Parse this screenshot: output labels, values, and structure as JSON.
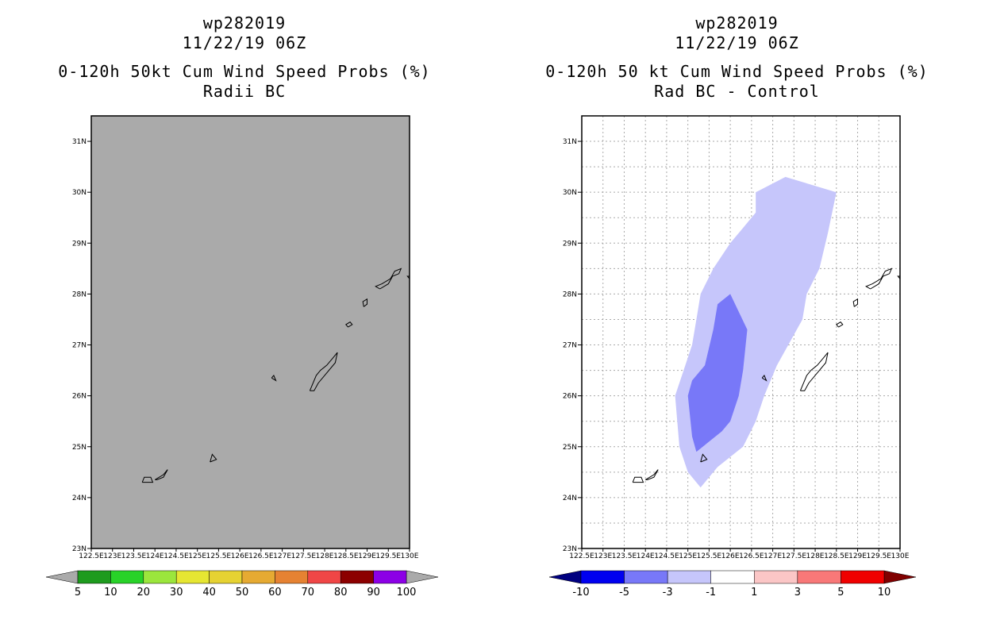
{
  "left_panel": {
    "title_line1": "wp282019",
    "title_line2": "11/22/19 06Z",
    "title_line3": "0-120h 50kt Cum Wind Speed Probs (%)",
    "title_line4": "Radii BC"
  },
  "right_panel": {
    "title_line1": "wp282019",
    "title_line2": "11/22/19 06Z",
    "title_line3": "0-120h 50 kt Cum Wind Speed Probs (%)",
    "title_line4": "Rad BC - Control"
  },
  "colors": {
    "left_field": "#aaaaaa",
    "light_blue": "#c6c6fb",
    "mid_blue": "#7878f8",
    "coast": "#000000"
  },
  "chart_data": [
    {
      "type": "heatmap",
      "title": "0-120h 50kt Cum Wind Speed Probs (%) - Radii BC",
      "x_ticks": [
        "122.5E",
        "123E",
        "123.5E",
        "124E",
        "124.5E",
        "125E",
        "125.5E",
        "126E",
        "126.5E",
        "127E",
        "127.5E",
        "128E",
        "128.5E",
        "129E",
        "129.5E",
        "130E"
      ],
      "y_ticks": [
        "23N",
        "24N",
        "25N",
        "26N",
        "27N",
        "28N",
        "29N",
        "30N",
        "31N"
      ],
      "xlim": [
        122.5,
        130
      ],
      "ylim": [
        23,
        31.5
      ],
      "field": "below 5% everywhere (uniform grey)",
      "colorbar": {
        "labels": [
          "5",
          "10",
          "20",
          "30",
          "40",
          "50",
          "60",
          "70",
          "80",
          "90",
          "100"
        ],
        "colors": [
          "#1e9b1e",
          "#28d228",
          "#9be63c",
          "#e6e632",
          "#e6d232",
          "#e6aa32",
          "#e68232",
          "#f04646",
          "#8c0000",
          "#8c00e6"
        ]
      }
    },
    {
      "type": "heatmap",
      "title": "0-120h 50 kt Cum Wind Speed Probs (%) - Rad BC - Control",
      "x_ticks": [
        "122.5E",
        "123E",
        "123.5E",
        "124E",
        "124.5E",
        "125E",
        "125.5E",
        "126E",
        "126.5E",
        "127E",
        "127.5E",
        "128E",
        "128.5E",
        "129E",
        "129.5E",
        "130E"
      ],
      "y_ticks": [
        "23N",
        "24N",
        "25N",
        "26N",
        "27N",
        "28N",
        "29N",
        "30N",
        "31N"
      ],
      "xlim": [
        122.5,
        130
      ],
      "ylim": [
        23,
        31.5
      ],
      "grid": true,
      "contours": [
        {
          "level": "-3 to -1",
          "polygon_lonlat": [
            [
              127.3,
              30.3
            ],
            [
              128.5,
              30.0
            ],
            [
              128.3,
              29.2
            ],
            [
              128.1,
              28.5
            ],
            [
              127.8,
              28.0
            ],
            [
              127.7,
              27.5
            ],
            [
              127.1,
              26.6
            ],
            [
              126.8,
              26.0
            ],
            [
              126.6,
              25.5
            ],
            [
              126.3,
              25.0
            ],
            [
              125.7,
              24.6
            ],
            [
              125.3,
              24.2
            ],
            [
              125.0,
              24.5
            ],
            [
              124.8,
              25.0
            ],
            [
              124.7,
              26.0
            ],
            [
              124.9,
              26.5
            ],
            [
              125.1,
              27.0
            ],
            [
              125.2,
              27.5
            ],
            [
              125.3,
              28.0
            ],
            [
              125.6,
              28.5
            ],
            [
              126.0,
              29.0
            ],
            [
              126.3,
              29.3
            ],
            [
              126.6,
              29.6
            ],
            [
              126.6,
              30.0
            ]
          ]
        },
        {
          "level": "-5 to -3",
          "polygon_lonlat": [
            [
              126.0,
              28.0
            ],
            [
              126.4,
              27.3
            ],
            [
              126.3,
              26.5
            ],
            [
              126.2,
              26.0
            ],
            [
              126.0,
              25.5
            ],
            [
              125.8,
              25.3
            ],
            [
              125.2,
              24.9
            ],
            [
              125.1,
              25.2
            ],
            [
              125.0,
              26.0
            ],
            [
              125.1,
              26.3
            ],
            [
              125.4,
              26.6
            ],
            [
              125.6,
              27.3
            ],
            [
              125.7,
              27.8
            ]
          ]
        }
      ],
      "colorbar": {
        "labels": [
          "-10",
          "-5",
          "-3",
          "-1",
          "1",
          "3",
          "5",
          "10"
        ],
        "colors": [
          "#0000f0",
          "#7878f8",
          "#c6c6fb",
          "#ffffff",
          "#fbc6c6",
          "#f87878",
          "#f00000"
        ]
      }
    }
  ]
}
